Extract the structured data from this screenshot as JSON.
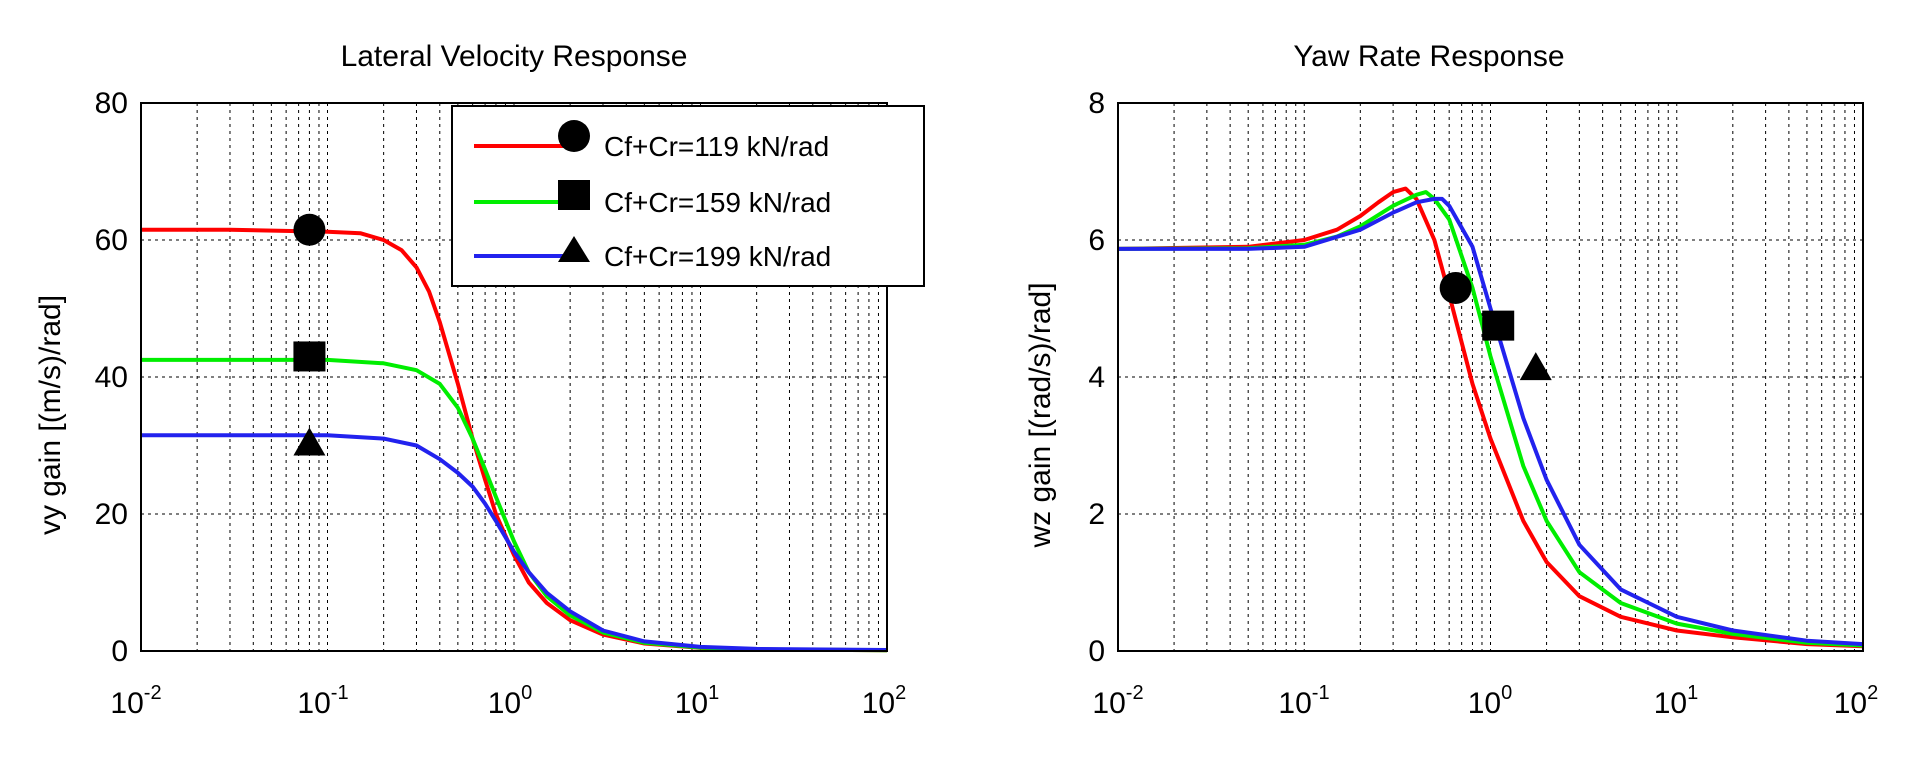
{
  "chart_data": [
    {
      "type": "line",
      "title": "Lateral Velocity Response",
      "xlabel": "",
      "ylabel": "vy gain [(m/s)/rad]",
      "xscale": "log",
      "xlim": [
        0.01,
        100
      ],
      "ylim": [
        0,
        80
      ],
      "x_ticks": [
        {
          "base": "10",
          "exp": "-2"
        },
        {
          "base": "10",
          "exp": "-1"
        },
        {
          "base": "10",
          "exp": "0"
        },
        {
          "base": "10",
          "exp": "1"
        },
        {
          "base": "10",
          "exp": "2"
        }
      ],
      "y_ticks": [
        "0",
        "20",
        "40",
        "60",
        "80"
      ],
      "grid": true,
      "legend_position": "top-right",
      "series": [
        {
          "name": "Cf+Cr=119 kN/rad",
          "color": "#ff0000",
          "marker": "circle",
          "marker_point": [
            0.08,
            61.5
          ],
          "x": [
            0.01,
            0.03,
            0.1,
            0.15,
            0.2,
            0.25,
            0.3,
            0.35,
            0.4,
            0.5,
            0.6,
            0.7,
            0.8,
            1.0,
            1.2,
            1.5,
            2,
            3,
            5,
            10,
            20,
            100
          ],
          "y": [
            61.5,
            61.5,
            61.2,
            61.0,
            60.0,
            58.5,
            56.0,
            52.5,
            48.0,
            39.0,
            31.0,
            25.0,
            20.0,
            14.0,
            10.0,
            7.0,
            4.5,
            2.4,
            1.1,
            0.45,
            0.25,
            0.1
          ]
        },
        {
          "name": "Cf+Cr=159 kN/rad",
          "color": "#00ee00",
          "marker": "square",
          "marker_point": [
            0.08,
            43
          ],
          "x": [
            0.01,
            0.1,
            0.2,
            0.3,
            0.4,
            0.5,
            0.6,
            0.7,
            0.8,
            1.0,
            1.2,
            1.5,
            2,
            3,
            5,
            10,
            20,
            100
          ],
          "y": [
            42.5,
            42.5,
            42.0,
            41.0,
            39.0,
            35.5,
            31.0,
            26.5,
            22.5,
            16.0,
            11.5,
            8.0,
            5.2,
            2.7,
            1.2,
            0.5,
            0.25,
            0.1
          ]
        },
        {
          "name": "Cf+Cr=199 kN/rad",
          "color": "#2222ee",
          "marker": "triangle",
          "marker_point": [
            0.08,
            30
          ],
          "x": [
            0.01,
            0.1,
            0.2,
            0.3,
            0.4,
            0.5,
            0.6,
            0.7,
            0.8,
            1.0,
            1.2,
            1.5,
            2,
            3,
            5,
            10,
            20,
            100
          ],
          "y": [
            31.5,
            31.5,
            31.0,
            30.0,
            28.0,
            26.0,
            24.0,
            21.5,
            19.0,
            14.5,
            11.5,
            8.5,
            5.8,
            3.0,
            1.4,
            0.6,
            0.3,
            0.15
          ]
        }
      ]
    },
    {
      "type": "line",
      "title": "Yaw Rate Response",
      "xlabel": "",
      "ylabel": "wz gain [(rad/s)/rad]",
      "xscale": "log",
      "xlim": [
        0.01,
        100
      ],
      "ylim": [
        0,
        8
      ],
      "x_ticks": [
        {
          "base": "10",
          "exp": "-2"
        },
        {
          "base": "10",
          "exp": "-1"
        },
        {
          "base": "10",
          "exp": "0"
        },
        {
          "base": "10",
          "exp": "1"
        },
        {
          "base": "10",
          "exp": "2"
        }
      ],
      "y_ticks": [
        "0",
        "2",
        "4",
        "6",
        "8"
      ],
      "grid": true,
      "series": [
        {
          "name": "Cf+Cr=119 kN/rad",
          "color": "#ff0000",
          "marker": "circle",
          "marker_point": [
            0.65,
            5.3
          ],
          "x": [
            0.01,
            0.05,
            0.1,
            0.15,
            0.2,
            0.25,
            0.3,
            0.35,
            0.4,
            0.5,
            0.6,
            0.8,
            1.0,
            1.5,
            2,
            3,
            5,
            10,
            20,
            50,
            100
          ],
          "y": [
            5.87,
            5.9,
            6.0,
            6.15,
            6.35,
            6.55,
            6.7,
            6.75,
            6.6,
            6.0,
            5.2,
            3.9,
            3.1,
            1.9,
            1.3,
            0.8,
            0.5,
            0.3,
            0.2,
            0.1,
            0.07
          ]
        },
        {
          "name": "Cf+Cr=159 kN/rad",
          "color": "#00ee00",
          "marker": "square",
          "marker_point": [
            1.1,
            4.75
          ],
          "x": [
            0.01,
            0.05,
            0.1,
            0.15,
            0.2,
            0.3,
            0.4,
            0.45,
            0.5,
            0.6,
            0.8,
            1.0,
            1.5,
            2,
            3,
            5,
            10,
            20,
            50,
            100
          ],
          "y": [
            5.87,
            5.88,
            5.93,
            6.05,
            6.2,
            6.5,
            6.66,
            6.7,
            6.6,
            6.3,
            5.3,
            4.3,
            2.7,
            1.9,
            1.15,
            0.7,
            0.4,
            0.25,
            0.12,
            0.08
          ]
        },
        {
          "name": "Cf+Cr=199 kN/rad",
          "color": "#2222ee",
          "marker": "triangle",
          "marker_point": [
            1.75,
            4.1
          ],
          "x": [
            0.01,
            0.05,
            0.1,
            0.2,
            0.3,
            0.4,
            0.5,
            0.55,
            0.6,
            0.8,
            1.0,
            1.5,
            2,
            3,
            5,
            10,
            20,
            50,
            100
          ],
          "y": [
            5.87,
            5.87,
            5.9,
            6.15,
            6.4,
            6.55,
            6.6,
            6.6,
            6.5,
            5.9,
            5.0,
            3.4,
            2.5,
            1.55,
            0.9,
            0.5,
            0.3,
            0.15,
            0.1
          ]
        }
      ]
    }
  ]
}
